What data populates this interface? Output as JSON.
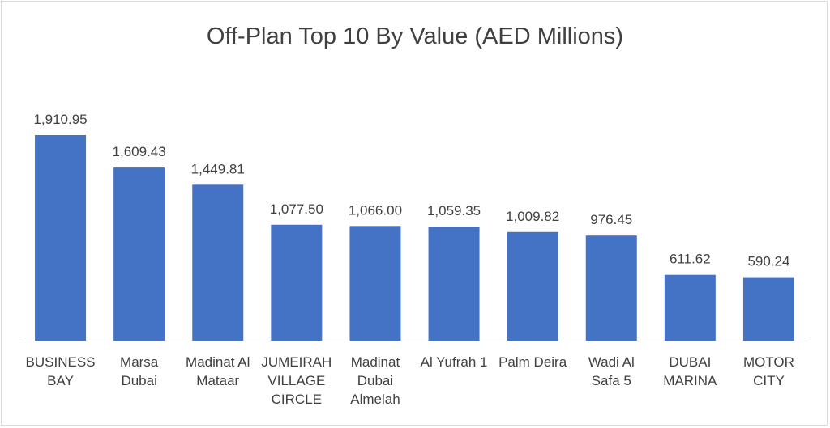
{
  "chart_data": {
    "type": "bar",
    "title": "Off-Plan Top 10 By Value (AED Millions)",
    "xlabel": "",
    "ylabel": "",
    "ylim": [
      0,
      1910.95
    ],
    "grid": false,
    "legend": "none",
    "bar_color": "#4472C4",
    "categories": [
      [
        "BUSINESS",
        "BAY"
      ],
      [
        "Marsa",
        "Dubai"
      ],
      [
        "Madinat Al",
        "Mataar"
      ],
      [
        "JUMEIRAH",
        "VILLAGE",
        "CIRCLE"
      ],
      [
        "Madinat",
        "Dubai",
        "Almelah"
      ],
      [
        "Al Yufrah 1"
      ],
      [
        "Palm Deira"
      ],
      [
        "Wadi Al",
        "Safa 5"
      ],
      [
        "DUBAI",
        "MARINA"
      ],
      [
        "MOTOR",
        "CITY"
      ]
    ],
    "values": [
      1910.95,
      1609.43,
      1449.81,
      1077.5,
      1066.0,
      1059.35,
      1009.82,
      976.45,
      611.62,
      590.24
    ],
    "data_labels": [
      "1,910.95",
      "1,609.43",
      "1,449.81",
      "1,077.50",
      "1,066.00",
      "1,059.35",
      "1,009.82",
      "976.45",
      "611.62",
      "590.24"
    ]
  }
}
